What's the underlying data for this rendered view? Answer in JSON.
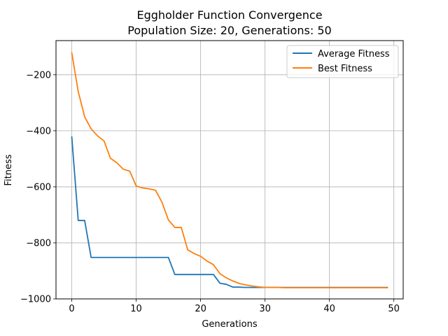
{
  "chart_data": {
    "type": "line",
    "title": "Eggholder Function Convergence",
    "subtitle": "Population Size: 20, Generations: 50",
    "xlabel": "Generations",
    "ylabel": "Fitness",
    "xlim": [
      -2.45,
      51.45
    ],
    "ylim": [
      -1000,
      -78
    ],
    "xticks": [
      0,
      10,
      20,
      30,
      40,
      50
    ],
    "xtick_labels": [
      "0",
      "10",
      "20",
      "30",
      "40",
      "50"
    ],
    "yticks": [
      -1000,
      -800,
      -600,
      -400,
      -200
    ],
    "ytick_labels": [
      "−1000",
      "−800",
      "−600",
      "−400",
      "−200"
    ],
    "grid": true,
    "legend_position": "top-right",
    "x": [
      0,
      1,
      2,
      3,
      4,
      5,
      6,
      7,
      8,
      9,
      10,
      11,
      12,
      13,
      14,
      15,
      16,
      17,
      18,
      19,
      20,
      21,
      22,
      23,
      24,
      25,
      26,
      27,
      28,
      29,
      30,
      31,
      32,
      33,
      34,
      35,
      36,
      37,
      38,
      39,
      40,
      41,
      42,
      43,
      44,
      45,
      46,
      47,
      48,
      49
    ],
    "series": [
      {
        "name": "Average Fitness",
        "color": "#1f77b4",
        "values": [
          -422,
          -720,
          -720,
          -852,
          -852,
          -852,
          -852,
          -852,
          -852,
          -852,
          -852,
          -852,
          -852,
          -852,
          -852,
          -852,
          -913,
          -913,
          -913,
          -913,
          -913,
          -913,
          -913,
          -944,
          -948,
          -958,
          -958,
          -959,
          -959,
          -959,
          -959,
          -959,
          -959,
          -959,
          -959,
          -959,
          -959,
          -959,
          -959,
          -959,
          -959,
          -959,
          -959,
          -959,
          -959,
          -959,
          -959,
          -959,
          -959,
          -959
        ]
      },
      {
        "name": "Best Fitness",
        "color": "#ff7f0e",
        "values": [
          -122,
          -260,
          -350,
          -393,
          -418,
          -436,
          -498,
          -514,
          -537,
          -544,
          -597,
          -604,
          -607,
          -612,
          -655,
          -718,
          -745,
          -745,
          -825,
          -838,
          -848,
          -865,
          -878,
          -910,
          -925,
          -936,
          -945,
          -950,
          -954,
          -957,
          -959,
          -959,
          -959,
          -960,
          -960,
          -960,
          -960,
          -960,
          -960,
          -960,
          -960,
          -960,
          -960,
          -960,
          -960,
          -960,
          -960,
          -960,
          -960,
          -960
        ]
      }
    ]
  }
}
